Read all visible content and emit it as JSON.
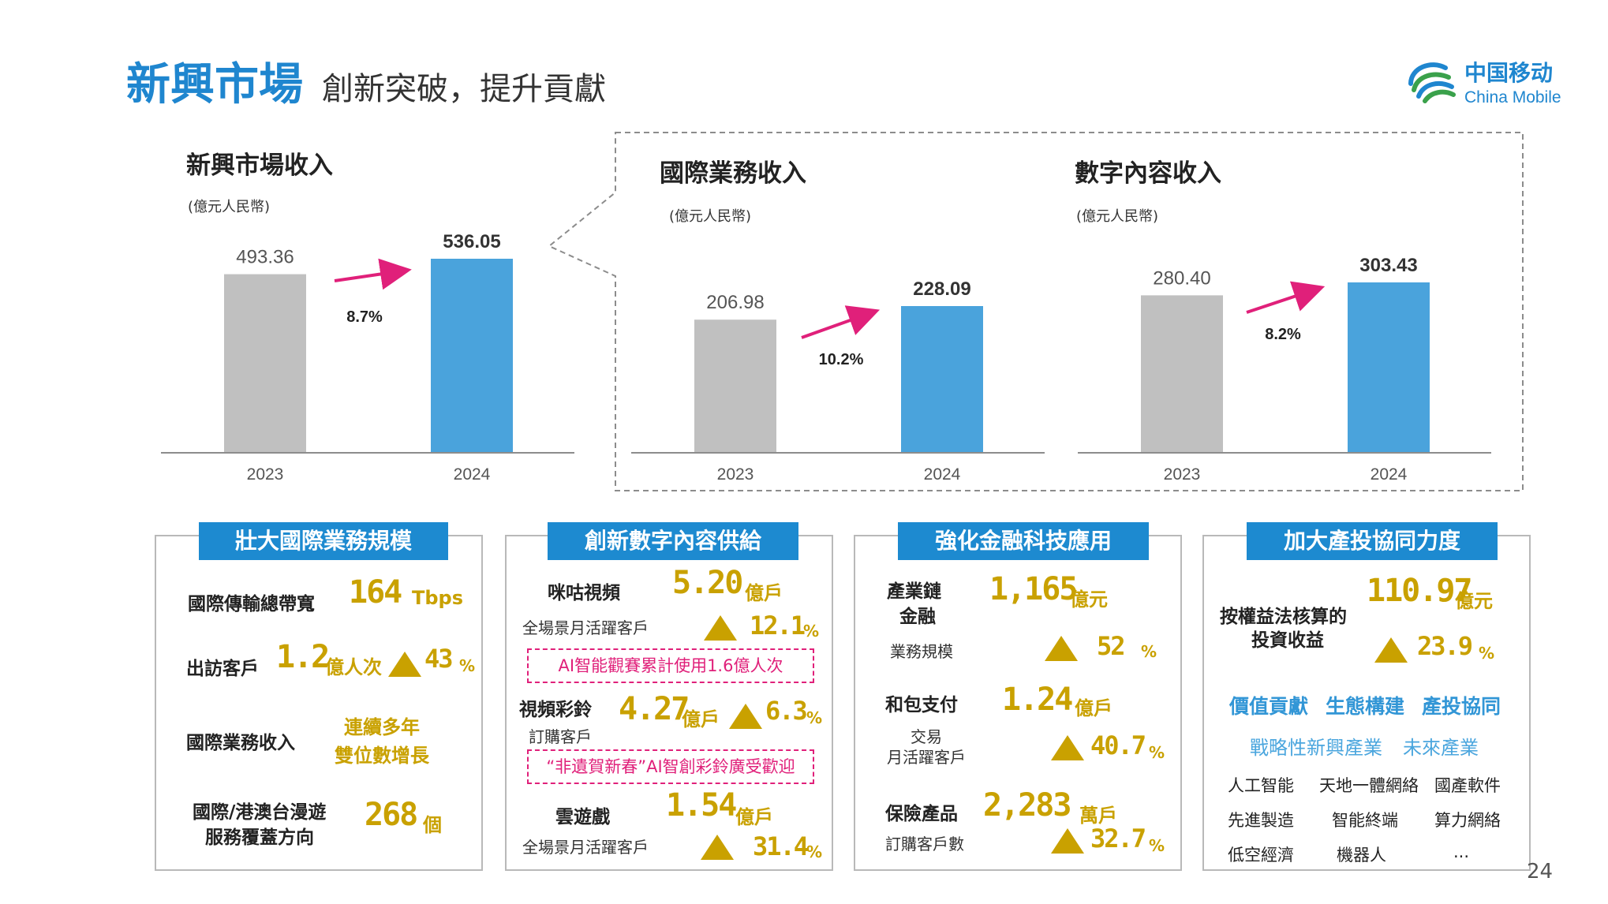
{
  "header": {
    "title": "新興市場",
    "subtitle": "創新突破，提升貢獻",
    "logo_cn": "中国移动",
    "logo_en": "China Mobile"
  },
  "charts": {
    "c1_title": "新興市場收入",
    "c2_title": "國際業務收入",
    "c3_title": "數字內容收入",
    "unit": "(億元人民幣)"
  },
  "chart_data": [
    {
      "type": "bar",
      "title": "新興市場收入",
      "unit": "(億元人民幣)",
      "categories": [
        "2023",
        "2024"
      ],
      "values": [
        493.36,
        536.05
      ],
      "value_labels": [
        "493.36",
        "536.05"
      ],
      "growth": "8.7%",
      "colors": [
        "#c0c0c0",
        "#4aa3dc"
      ]
    },
    {
      "type": "bar",
      "title": "國際業務收入",
      "unit": "(億元人民幣)",
      "categories": [
        "2023",
        "2024"
      ],
      "values": [
        206.98,
        228.09
      ],
      "value_labels": [
        "206.98",
        "228.09"
      ],
      "growth": "10.2%",
      "colors": [
        "#c0c0c0",
        "#4aa3dc"
      ]
    },
    {
      "type": "bar",
      "title": "數字內容收入",
      "unit": "(億元人民幣)",
      "categories": [
        "2023",
        "2024"
      ],
      "values": [
        280.4,
        303.43
      ],
      "value_labels": [
        "280.40",
        "303.43"
      ],
      "growth": "8.2%",
      "colors": [
        "#c0c0c0",
        "#4aa3dc"
      ]
    }
  ],
  "box1": {
    "header": "壯大國際業務規模",
    "r1_label": "國際傳輸總帶寬",
    "r1_value": "164",
    "r1_unit": "Tbps",
    "r2_label": "出訪客戶",
    "r2_value": "1.2",
    "r2_unit": "億人次",
    "r2_growth": "43",
    "r2_pct": "%",
    "r3_label": "國際業務收入",
    "r3_text1": "連續多年",
    "r3_text2": "雙位數增長",
    "r4_label1": "國際/港澳台漫遊",
    "r4_label2": "服務覆蓋方向",
    "r4_value": "268",
    "r4_unit": "個"
  },
  "box2": {
    "header": "創新數字內容供給",
    "r1_label": "咪咕視頻",
    "r1_value": "5.20",
    "r1_unit": "億戶",
    "r1_sub": "全場景月活躍客戶",
    "r1_growth": "12.1",
    "r1_pct": "%",
    "pink1": "AI智能觀賽累計使用1.6億人次",
    "r2_label": "視頻彩鈴",
    "r2_value": "4.27",
    "r2_unit": "億戶",
    "r2_growth": "6.3",
    "r2_pct": "%",
    "r2_sub": "訂購客戶",
    "pink2": "“非遺賀新春”AI智創彩鈴廣受歡迎",
    "r3_label": "雲遊戲",
    "r3_value": "1.54",
    "r3_unit": "億戶",
    "r3_sub": "全場景月活躍客戶",
    "r3_growth": "31.4",
    "r3_pct": "%"
  },
  "box3": {
    "header": "強化金融科技應用",
    "r1_label1": "產業鏈",
    "r1_label2": "金融",
    "r1_value": "1,165",
    "r1_unit": "億元",
    "r1_sub": "業務規模",
    "r1_growth": "52",
    "r1_pct": "%",
    "r2_label": "和包支付",
    "r2_value": "1.24",
    "r2_unit": "億戶",
    "r2_sub1": "交易",
    "r2_sub2": "月活躍客戶",
    "r2_growth": "40.7",
    "r2_pct": "%",
    "r3_label": "保險產品",
    "r3_value": "2,283",
    "r3_unit": "萬戶",
    "r3_sub": "訂購客戶數",
    "r3_growth": "32.7",
    "r3_pct": "%"
  },
  "box4": {
    "header": "加大產投協同力度",
    "r1_label1": "按權益法核算的",
    "r1_label2": "投資收益",
    "r1_value": "110.97",
    "r1_unit": "億元",
    "r1_growth": "23.9",
    "r1_pct": "%",
    "blue1": "價值貢獻",
    "blue2": "生態構建",
    "blue3": "產投協同",
    "lb1": "戰略性新興產業",
    "lb2": "未來產業",
    "g1": "人工智能",
    "g2": "天地一體網絡",
    "g3": "國產軟件",
    "g4": "先進製造",
    "g5": "智能終端",
    "g6": "算力網絡",
    "g7": "低空經濟",
    "g8": "機器人",
    "g9": "..."
  },
  "page_number": "24"
}
